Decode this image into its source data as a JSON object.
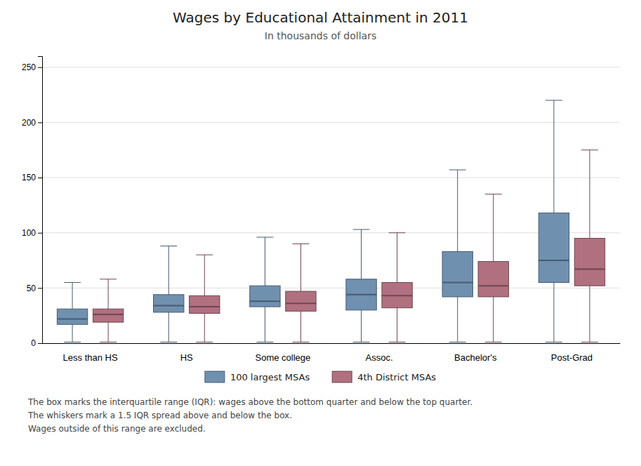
{
  "chart_data": {
    "type": "box",
    "title": "Wages by Educational Attainment in 2011",
    "subtitle": "In thousands of dollars",
    "categories": [
      "Less than HS",
      "HS",
      "Some college",
      "Assoc.",
      "Bachelor's",
      "Post-Grad"
    ],
    "series": [
      {
        "name": "100 largest MSAs",
        "color": "#7090b0",
        "values": [
          {
            "whislo": 1,
            "q1": 17,
            "med": 22,
            "q3": 31,
            "whishi": 55
          },
          {
            "whislo": 1,
            "q1": 28,
            "med": 34,
            "q3": 44,
            "whishi": 88
          },
          {
            "whislo": 1,
            "q1": 33,
            "med": 38,
            "q3": 52,
            "whishi": 96
          },
          {
            "whislo": 1,
            "q1": 30,
            "med": 44,
            "q3": 58,
            "whishi": 103
          },
          {
            "whislo": 1,
            "q1": 42,
            "med": 55,
            "q3": 83,
            "whishi": 157
          },
          {
            "whislo": 1,
            "q1": 55,
            "med": 75,
            "q3": 118,
            "whishi": 220
          }
        ]
      },
      {
        "name": "4th District MSAs",
        "color": "#b07080",
        "values": [
          {
            "whislo": 1,
            "q1": 19,
            "med": 26,
            "q3": 31,
            "whishi": 58
          },
          {
            "whislo": 1,
            "q1": 27,
            "med": 33,
            "q3": 43,
            "whishi": 80
          },
          {
            "whislo": 1,
            "q1": 29,
            "med": 36,
            "q3": 47,
            "whishi": 90
          },
          {
            "whislo": 1,
            "q1": 32,
            "med": 43,
            "q3": 55,
            "whishi": 100
          },
          {
            "whislo": 1,
            "q1": 42,
            "med": 52,
            "q3": 74,
            "whishi": 135
          },
          {
            "whislo": 1,
            "q1": 52,
            "med": 67,
            "q3": 95,
            "whishi": 175
          }
        ]
      }
    ],
    "ylim": [
      0,
      260
    ],
    "yticks": [
      0,
      50,
      100,
      150,
      200,
      250
    ],
    "grid": true,
    "legend": "bottom",
    "footnotes": [
      "The box marks the interquartile range (IQR): wages above the bottom quarter and below the top quarter.",
      "The whiskers mark a 1.5 IQR spread above and below the box.",
      "Wages outside of this range are excluded."
    ]
  }
}
